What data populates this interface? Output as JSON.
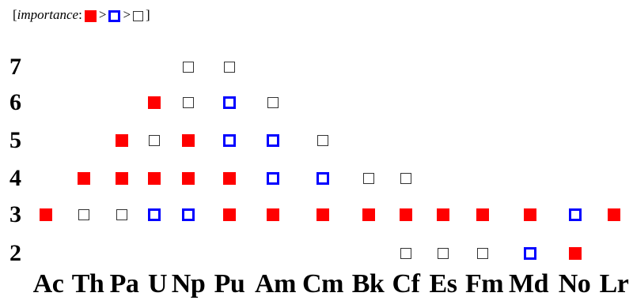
{
  "legend": {
    "open": "[",
    "label": "importance",
    "colon": ":",
    "gt1": ">",
    "gt2": ">",
    "close": "]",
    "levels": [
      "high",
      "medium",
      "low"
    ]
  },
  "colors": {
    "high": "#ff0000",
    "medium": "#0000ff",
    "low": "#333333"
  },
  "oxidation_states": [
    "7",
    "6",
    "5",
    "4",
    "3",
    "2"
  ],
  "elements": [
    "Ac",
    "Th",
    "Pa",
    "U",
    "Np",
    "Pu",
    "Am",
    "Cm",
    "Bk",
    "Cf",
    "Es",
    "Fm",
    "Md",
    "No",
    "Lr"
  ],
  "chart_data": {
    "type": "table",
    "rows": [
      "7",
      "6",
      "5",
      "4",
      "3",
      "2"
    ],
    "columns": [
      "Ac",
      "Th",
      "Pa",
      "U",
      "Np",
      "Pu",
      "Am",
      "Cm",
      "Bk",
      "Cf",
      "Es",
      "Fm",
      "Md",
      "No",
      "Lr"
    ],
    "states": {
      "Ac": {
        "3": "high"
      },
      "Th": {
        "4": "high",
        "3": "low"
      },
      "Pa": {
        "5": "high",
        "4": "high",
        "3": "low"
      },
      "U": {
        "6": "high",
        "5": "low",
        "4": "high",
        "3": "medium"
      },
      "Np": {
        "7": "low",
        "6": "low",
        "5": "high",
        "4": "high",
        "3": "medium"
      },
      "Pu": {
        "7": "low",
        "6": "medium",
        "5": "medium",
        "4": "high",
        "3": "high"
      },
      "Am": {
        "6": "low",
        "5": "medium",
        "4": "medium",
        "3": "high"
      },
      "Cm": {
        "5": "low",
        "4": "medium",
        "3": "high"
      },
      "Bk": {
        "4": "low",
        "3": "high"
      },
      "Cf": {
        "4": "low",
        "3": "high",
        "2": "low"
      },
      "Es": {
        "3": "high",
        "2": "low"
      },
      "Fm": {
        "3": "high",
        "2": "low"
      },
      "Md": {
        "3": "high",
        "2": "medium"
      },
      "No": {
        "3": "medium",
        "2": "high"
      },
      "Lr": {
        "3": "high"
      }
    }
  }
}
